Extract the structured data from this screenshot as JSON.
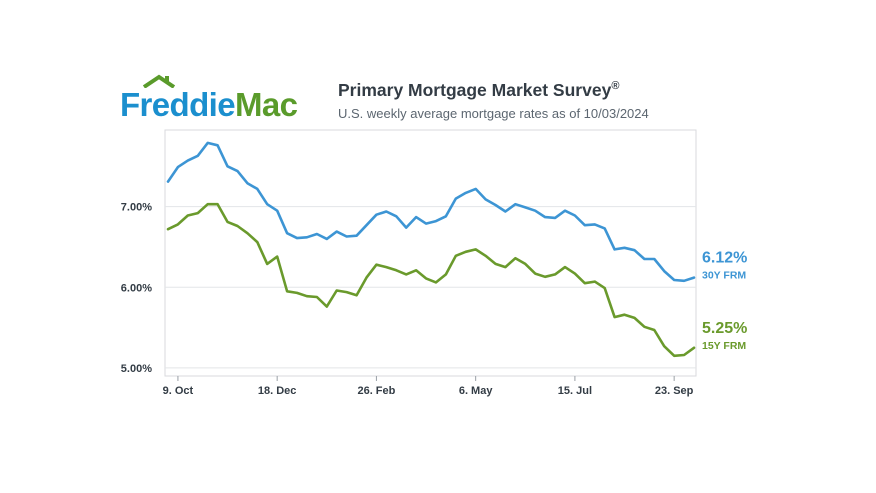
{
  "brand": {
    "logo_part1": "Freddie",
    "logo_part2": "Mac",
    "logo_text": "Freddie Mac",
    "colors": {
      "blue": "#1b8fce",
      "green": "#5a9b2b"
    }
  },
  "header": {
    "title": "Primary Mortgage Market Survey",
    "title_mark": "®",
    "subtitle": "U.S. weekly average mortgage rates as of 10/03/2024"
  },
  "chart_data": {
    "type": "line",
    "title": "Primary Mortgage Market Survey®",
    "subtitle": "U.S. weekly average mortgage rates as of 10/03/2024",
    "xlabel": "",
    "ylabel": "",
    "ylim": [
      4.9,
      7.95
    ],
    "yticks": [
      5.0,
      6.0,
      7.0
    ],
    "ytick_labels": [
      "5.00%",
      "6.00%",
      "7.00%"
    ],
    "xticks": [
      {
        "label": "9. Oct",
        "week_index": 1
      },
      {
        "label": "18. Dec",
        "week_index": 11
      },
      {
        "label": "26. Feb",
        "week_index": 21
      },
      {
        "label": "6. May",
        "week_index": 31
      },
      {
        "label": "15. Jul",
        "week_index": 41
      },
      {
        "label": "23. Sep",
        "week_index": 51
      }
    ],
    "grid": true,
    "legend": "line-end labels",
    "series": [
      {
        "name": "30Y FRM",
        "color": "#3d95d4",
        "end_label": "6.12%",
        "values": [
          7.31,
          7.49,
          7.57,
          7.63,
          7.79,
          7.76,
          7.5,
          7.44,
          7.29,
          7.22,
          7.03,
          6.95,
          6.67,
          6.61,
          6.62,
          6.66,
          6.6,
          6.69,
          6.63,
          6.64,
          6.77,
          6.9,
          6.94,
          6.88,
          6.74,
          6.87,
          6.79,
          6.82,
          6.88,
          7.1,
          7.17,
          7.22,
          7.09,
          7.02,
          6.94,
          7.03,
          6.99,
          6.95,
          6.87,
          6.86,
          6.95,
          6.89,
          6.77,
          6.78,
          6.73,
          6.47,
          6.49,
          6.46,
          6.35,
          6.35,
          6.2,
          6.09,
          6.08,
          6.12
        ]
      },
      {
        "name": "15Y FRM",
        "color": "#6a9a2c",
        "end_label": "5.25%",
        "values": [
          6.72,
          6.78,
          6.89,
          6.92,
          7.03,
          7.03,
          6.81,
          6.76,
          6.67,
          6.56,
          6.29,
          6.38,
          5.95,
          5.93,
          5.89,
          5.88,
          5.76,
          5.96,
          5.94,
          5.9,
          6.12,
          6.28,
          6.25,
          6.21,
          6.16,
          6.21,
          6.11,
          6.06,
          6.16,
          6.39,
          6.44,
          6.47,
          6.39,
          6.29,
          6.25,
          6.36,
          6.29,
          6.17,
          6.13,
          6.16,
          6.25,
          6.17,
          6.05,
          6.07,
          5.99,
          5.63,
          5.66,
          5.62,
          5.51,
          5.47,
          5.27,
          5.15,
          5.16,
          5.25
        ]
      }
    ]
  }
}
